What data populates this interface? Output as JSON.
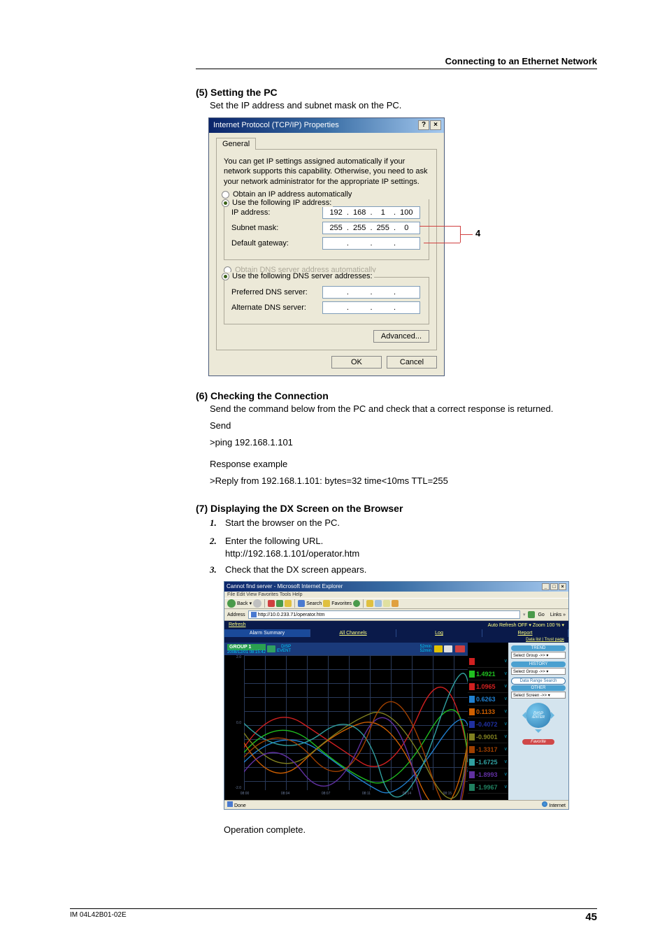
{
  "header": {
    "section": "Connecting to an Ethernet Network"
  },
  "s5": {
    "title": "(5) Setting the PC",
    "desc": "Set the IP address and subnet mask on the PC."
  },
  "dialog": {
    "title": "Internet Protocol (TCP/IP) Properties",
    "help": "?",
    "close": "×",
    "tab": "General",
    "intro": "You can get IP settings assigned automatically if your network supports this capability. Otherwise, you need to ask your network administrator for the appropriate IP settings.",
    "r1": "Obtain an IP address automatically",
    "r2": "Use the following IP address:",
    "ip_label": "IP address:",
    "ip": [
      "192",
      "168",
      "1",
      "100"
    ],
    "mask_label": "Subnet mask:",
    "mask": [
      "255",
      "255",
      "255",
      "0"
    ],
    "gw_label": "Default gateway:",
    "r3": "Obtain DNS server address automatically",
    "r4": "Use the following DNS server addresses:",
    "pdns": "Preferred DNS server:",
    "adns": "Alternate DNS server:",
    "adv": "Advanced...",
    "ok": "OK",
    "cancel": "Cancel",
    "anno": "4"
  },
  "s6": {
    "title": "(6) Checking the Connection",
    "l1": "Send the command below from the PC and check that a correct response is returned.",
    "l2": "Send",
    "l3": ">ping 192.168.1.101",
    "l4": "Response example",
    "l5": ">Reply from 192.168.1.101: bytes=32 time<10ms TTL=255"
  },
  "s7": {
    "title": "(7) Displaying the DX Screen on the Browser",
    "step1": "Start the browser on the PC.",
    "step2": "Enter the following URL.",
    "step2url": "http://192.168.1.101/operator.htm",
    "step3": "Check that the DX screen appears.",
    "n1": "1.",
    "n2": "2.",
    "n3": "3."
  },
  "browser": {
    "title": "Cannot find server - Microsoft Internet Explorer",
    "menu": "File   Edit   View   Favorites   Tools   Help",
    "back": "Back",
    "search": "Search",
    "fav": "Favorites",
    "addr_label": "Address",
    "url": "http://10.0.233.71/operator.htm",
    "go": "Go",
    "links": "Links »",
    "tabs": {
      "refresh": "Refresh",
      "alarm": "Alarm Summary",
      "all": "All Channels",
      "log": "Log",
      "auto": "Auto Refresh OFF ▾   Zoom 100 % ▾",
      "report": "Report",
      "datalist": "Data list | Trust page"
    },
    "group": "GROUP 1",
    "timestamp": "2008/12/01 08:15:42",
    "disp_event": "DISP\nEVENT",
    "min": "52min",
    "readouts": [
      {
        "val": "",
        "color": "#d02020"
      },
      {
        "val": "1.4921",
        "color": "#20c020"
      },
      {
        "val": "1.0965",
        "color": "#d02020"
      },
      {
        "val": "0.6263",
        "color": "#2080d0"
      },
      {
        "val": "0.1133",
        "color": "#d06000"
      },
      {
        "val": "-0.4072",
        "color": "#2030a0"
      },
      {
        "val": "-0.9001",
        "color": "#808020"
      },
      {
        "val": "-1.3317",
        "color": "#a04000"
      },
      {
        "val": "-1.6725",
        "color": "#30a0a0"
      },
      {
        "val": "-1.8993",
        "color": "#6030a0"
      },
      {
        "val": "-1.9967",
        "color": "#208060"
      }
    ],
    "side": {
      "trend": "TREND",
      "sel_group": "Select Group ->> ▾",
      "history": "HISTORY",
      "data_range": "Data Range Search",
      "other": "OTHER",
      "sel_screen": "Select Screen ->> ▾",
      "disp": "DISP",
      "enter": "/ENTER",
      "func": "Favorite"
    },
    "status_done": "Done",
    "status_net": "Internet"
  },
  "after": "Operation complete.",
  "footer": {
    "doc": "IM 04L42B01-02E",
    "page": "45"
  }
}
